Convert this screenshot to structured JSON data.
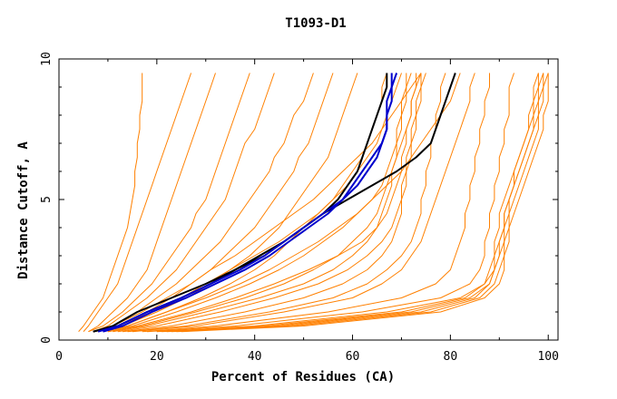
{
  "chart_data": {
    "type": "line",
    "title": "T1093-D1",
    "xlabel": "Percent of Residues (CA)",
    "ylabel": "Distance Cutoff, A",
    "xlim": [
      0,
      102
    ],
    "ylim": [
      0,
      10
    ],
    "x_ticks": [
      0,
      20,
      40,
      60,
      80,
      100
    ],
    "x_tick_labels": [
      "0",
      "20",
      "40",
      "60",
      "80",
      "100"
    ],
    "y_ticks": [
      0,
      5,
      10
    ],
    "y_tick_labels": [
      "0",
      "5",
      "10"
    ],
    "grid": false,
    "legend": "none",
    "colors": {
      "models": "#ff8000",
      "highlight_black": "#000000",
      "highlight_blue": "#0000cc"
    },
    "y_levels": [
      0.3,
      0.5,
      1,
      1.5,
      2,
      2.5,
      3,
      3.5,
      4,
      4.5,
      5,
      5.5,
      6,
      6.5,
      7,
      7.5,
      8,
      8.5,
      9,
      9.5
    ],
    "model_curves_orange": [
      {
        "x": [
          4,
          5,
          7,
          9,
          10,
          11,
          12,
          13,
          14,
          14.5,
          15,
          15.5,
          15.5,
          16,
          16,
          16.5,
          16.5,
          17,
          17,
          17
        ]
      },
      {
        "x": [
          5,
          6,
          8,
          10,
          12,
          13,
          14,
          15,
          16,
          17,
          18,
          19,
          20,
          21,
          22,
          23,
          24,
          25,
          26,
          27
        ]
      },
      {
        "x": [
          6,
          8,
          11,
          14,
          16,
          18,
          19,
          20,
          21,
          22,
          23,
          24,
          25,
          26,
          27,
          28,
          29,
          30,
          31,
          32
        ]
      },
      {
        "x": [
          6,
          9,
          13,
          16,
          19,
          21,
          23,
          25,
          27,
          28,
          30,
          31,
          32,
          33,
          34,
          35,
          36,
          37,
          38,
          39
        ]
      },
      {
        "x": [
          7,
          10,
          14,
          18,
          21,
          24,
          26,
          28,
          30,
          32,
          34,
          35,
          36,
          37,
          38,
          40,
          41,
          42,
          43,
          44
        ]
      },
      {
        "x": [
          7,
          11,
          16,
          20,
          24,
          27,
          30,
          33,
          35,
          37,
          39,
          41,
          43,
          44,
          46,
          47,
          48,
          50,
          51,
          52
        ]
      },
      {
        "x": [
          8,
          12,
          18,
          23,
          27,
          31,
          34,
          37,
          40,
          42,
          44,
          46,
          48,
          49,
          51,
          52,
          53,
          54,
          55,
          56
        ]
      },
      {
        "x": [
          8,
          13,
          20,
          26,
          31,
          35,
          39,
          42,
          45,
          47,
          49,
          51,
          53,
          55,
          56,
          57,
          58,
          59,
          60,
          61
        ]
      },
      {
        "x": [
          9,
          14,
          22,
          29,
          35,
          40,
          44,
          47,
          50,
          53,
          56,
          58,
          60,
          62,
          63,
          64,
          65,
          66,
          66,
          67
        ]
      },
      {
        "x": [
          9,
          15,
          24,
          32,
          39,
          45,
          50,
          54,
          58,
          61,
          64,
          66,
          67,
          68,
          69,
          69,
          70,
          70,
          71,
          71
        ]
      },
      {
        "x": [
          10,
          16,
          27,
          36,
          44,
          51,
          57,
          62,
          65,
          67,
          68,
          69,
          70,
          70,
          71,
          71,
          72,
          72,
          73,
          73
        ]
      },
      {
        "x": [
          8,
          12,
          19,
          25,
          30,
          35,
          40,
          45,
          49,
          53,
          56,
          59,
          61,
          63,
          65,
          66,
          67,
          68,
          69,
          70
        ]
      },
      {
        "x": [
          7,
          11,
          17,
          22,
          27,
          31,
          36,
          40,
          44,
          48,
          52,
          55,
          58,
          61,
          64,
          66,
          68,
          70,
          72,
          74
        ]
      },
      {
        "x": [
          9,
          14,
          22,
          30,
          37,
          43,
          48,
          53,
          57,
          61,
          64,
          67,
          70,
          72,
          74,
          76,
          78,
          80,
          81,
          82
        ]
      },
      {
        "x": [
          10,
          17,
          28,
          38,
          46,
          52,
          57,
          60,
          63,
          65,
          66,
          67,
          68,
          69,
          70,
          71,
          72,
          72,
          73,
          74
        ]
      },
      {
        "x": [
          11,
          18,
          30,
          41,
          50,
          56,
          60,
          63,
          65,
          66,
          67,
          68,
          68,
          69,
          69,
          70,
          70,
          71,
          71,
          72
        ]
      },
      {
        "x": [
          12,
          20,
          33,
          44,
          53,
          59,
          63,
          66,
          68,
          69,
          70,
          70,
          71,
          71,
          72,
          72,
          73,
          73,
          74,
          74
        ]
      },
      {
        "x": [
          13,
          23,
          38,
          50,
          58,
          63,
          66,
          68,
          69,
          70,
          70,
          71,
          71,
          72,
          72,
          73,
          73,
          74,
          74,
          75
        ]
      },
      {
        "x": [
          15,
          28,
          46,
          60,
          66,
          70,
          72,
          74,
          75,
          76,
          77,
          78,
          79,
          80,
          81,
          82,
          83,
          84,
          84,
          85
        ]
      },
      {
        "x": [
          14,
          26,
          43,
          56,
          63,
          67,
          70,
          72,
          73,
          74,
          74,
          75,
          75,
          76,
          76,
          77,
          77,
          78,
          78,
          79
        ]
      },
      {
        "x": [
          17,
          32,
          55,
          70,
          77,
          80,
          81,
          82,
          83,
          83,
          84,
          84,
          85,
          85,
          86,
          86,
          87,
          87,
          88,
          88
        ]
      },
      {
        "x": [
          18,
          36,
          62,
          78,
          84,
          86,
          87,
          87,
          88,
          88,
          89,
          89,
          90,
          90,
          91,
          91,
          92,
          92,
          92,
          93
        ]
      },
      {
        "x": [
          20,
          40,
          67,
          82,
          87,
          88,
          89,
          89,
          90,
          90,
          91,
          92,
          93,
          94,
          95,
          96,
          96,
          97,
          97,
          98
        ]
      },
      {
        "x": [
          22,
          44,
          72,
          84,
          88,
          89,
          90,
          90,
          91,
          91,
          92,
          93,
          94,
          95,
          96,
          97,
          98,
          98,
          99,
          99
        ]
      },
      {
        "x": [
          24,
          48,
          76,
          86,
          89,
          90,
          91,
          91,
          92,
          92,
          93,
          94,
          95,
          96,
          97,
          98,
          98,
          99,
          99,
          100
        ]
      },
      {
        "x": [
          25,
          50,
          78,
          87,
          90,
          91,
          91,
          92,
          92,
          93,
          94,
          95,
          96,
          97,
          98,
          99,
          99,
          100,
          100,
          100
        ]
      },
      {
        "x": [
          23,
          46,
          74,
          85,
          88,
          89,
          90,
          91,
          91,
          92,
          92,
          93,
          94,
          95,
          96,
          97,
          97,
          98,
          98,
          99
        ]
      },
      {
        "x": [
          21,
          42,
          70,
          83,
          87,
          89,
          89,
          90,
          91,
          91,
          92,
          93,
          93,
          94,
          95,
          96,
          97,
          97,
          98,
          98
        ]
      }
    ],
    "highlight_curves": [
      {
        "color": "black",
        "x": [
          7,
          12,
          18,
          25,
          31,
          36,
          41,
          46,
          50,
          54,
          59,
          64,
          69,
          73,
          76,
          77,
          78,
          79,
          80,
          81
        ]
      },
      {
        "color": "black",
        "x": [
          7,
          11,
          16,
          23,
          30,
          36,
          42,
          46,
          50,
          54,
          57,
          59,
          61,
          62,
          63,
          64,
          65,
          66,
          67,
          67
        ]
      },
      {
        "color": "blue",
        "x": [
          9,
          13,
          19,
          26,
          32,
          38,
          43,
          47,
          51,
          55,
          58,
          61,
          63,
          65,
          66,
          67,
          67,
          68,
          68,
          69
        ]
      },
      {
        "color": "blue",
        "x": [
          8,
          12,
          18,
          25,
          31,
          37,
          42,
          46,
          50,
          54,
          58,
          60,
          62,
          64,
          66,
          67,
          67,
          67,
          68,
          68
        ]
      }
    ]
  }
}
